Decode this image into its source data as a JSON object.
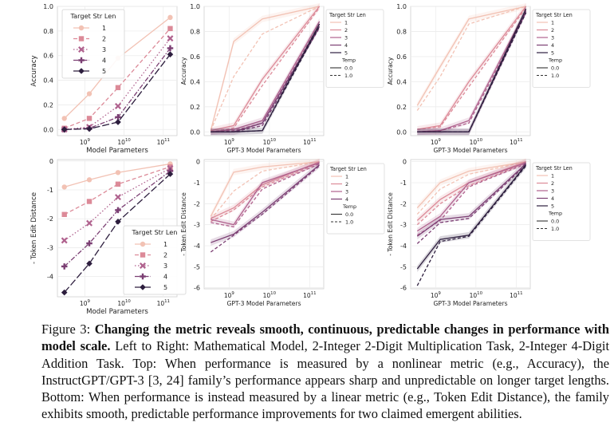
{
  "chart_data": [
    {
      "type": "line",
      "panel": "top-left",
      "xlabel": "Model Parameters",
      "ylabel": "Accuracy",
      "xscale": "log",
      "x": [
        300000000.0,
        1300000000.0,
        7000000000.0,
        150000000000.0
      ],
      "xticklabels": [
        "10^9",
        "10^10",
        "10^11"
      ],
      "ylim": [
        -0.05,
        1.0
      ],
      "yticks": [
        "0.0",
        "0.2",
        "0.4",
        "0.6",
        "0.8",
        "1.0"
      ],
      "grid": true,
      "legend": {
        "title": "Target Str Len",
        "placement": "top-left"
      },
      "series": [
        {
          "name": "1",
          "marker": "o",
          "dash": "solid",
          "values": [
            0.09,
            0.29,
            0.58,
            0.91
          ]
        },
        {
          "name": "2",
          "marker": "s",
          "dash": "dashed",
          "values": [
            0.01,
            0.09,
            0.34,
            0.82
          ]
        },
        {
          "name": "3",
          "marker": "x",
          "dash": "dotted",
          "values": [
            0.0,
            0.02,
            0.19,
            0.74
          ]
        },
        {
          "name": "4",
          "marker": "+",
          "dash": "dashdot",
          "values": [
            0.0,
            0.01,
            0.1,
            0.66
          ]
        },
        {
          "name": "5",
          "marker": "D",
          "dash": "longdash",
          "values": [
            0.0,
            0.005,
            0.06,
            0.61
          ]
        }
      ]
    },
    {
      "type": "line",
      "panel": "top-middle",
      "xlabel": "GPT-3 Model Parameters",
      "ylabel": "Accuracy",
      "xscale": "log",
      "x": [
        350000000.0,
        1300000000.0,
        6700000000.0,
        175000000000.0
      ],
      "xticklabels": [
        "10^9",
        "10^10",
        "10^11"
      ],
      "ylim": [
        -0.03,
        1.0
      ],
      "yticks": [
        "0.0",
        "0.2",
        "0.4",
        "0.6",
        "0.8",
        "1.0"
      ],
      "grid": true,
      "legend": {
        "title": "Target Str Len",
        "entries": [
          "1",
          "2",
          "3",
          "4",
          "5"
        ],
        "subtitle": "Temp",
        "temp_entries": [
          "0.0",
          "1.0"
        ],
        "placement": "outside-right"
      },
      "series": [
        {
          "name": "1",
          "temp": "0.0",
          "values": [
            0.01,
            0.72,
            0.9,
            1.0
          ]
        },
        {
          "name": "1",
          "temp": "1.0",
          "values": [
            0.01,
            0.44,
            0.78,
            1.0
          ]
        },
        {
          "name": "2",
          "temp": "0.0",
          "values": [
            0.01,
            0.05,
            0.42,
            1.0
          ]
        },
        {
          "name": "2",
          "temp": "1.0",
          "values": [
            0.0,
            0.03,
            0.37,
            0.99
          ]
        },
        {
          "name": "3",
          "temp": "0.0",
          "values": [
            0.0,
            0.02,
            0.09,
            0.88
          ]
        },
        {
          "name": "3",
          "temp": "1.0",
          "values": [
            0.0,
            0.01,
            0.07,
            0.86
          ]
        },
        {
          "name": "4",
          "temp": "0.0",
          "values": [
            0.0,
            0.0,
            0.07,
            0.84
          ]
        },
        {
          "name": "4",
          "temp": "1.0",
          "values": [
            0.0,
            0.0,
            0.05,
            0.83
          ]
        },
        {
          "name": "5",
          "temp": "0.0",
          "values": [
            0.0,
            0.0,
            0.01,
            0.86
          ]
        },
        {
          "name": "5",
          "temp": "1.0",
          "values": [
            0.0,
            0.0,
            0.01,
            0.84
          ]
        }
      ]
    },
    {
      "type": "line",
      "panel": "top-right",
      "xlabel": "GPT-3 Model Parameters",
      "ylabel": "Accuracy",
      "xscale": "log",
      "x": [
        350000000.0,
        1300000000.0,
        6700000000.0,
        175000000000.0
      ],
      "xticklabels": [
        "10^9",
        "10^10",
        "10^11"
      ],
      "ylim": [
        -0.03,
        1.0
      ],
      "yticks": [
        "0.0",
        "0.2",
        "0.4",
        "0.6",
        "0.8",
        "1.0"
      ],
      "grid": true,
      "legend": {
        "title": "Target Str Len",
        "entries": [
          "1",
          "2",
          "3",
          "4",
          "5"
        ],
        "subtitle": "Temp",
        "temp_entries": [
          "0.0",
          "1.0"
        ],
        "placement": "outside-right"
      },
      "series": [
        {
          "name": "1",
          "temp": "0.0",
          "values": [
            0.21,
            0.52,
            0.9,
            1.0
          ]
        },
        {
          "name": "1",
          "temp": "1.0",
          "values": [
            0.17,
            0.44,
            0.86,
            1.0
          ]
        },
        {
          "name": "2",
          "temp": "0.0",
          "values": [
            0.02,
            0.05,
            0.4,
            1.0
          ]
        },
        {
          "name": "2",
          "temp": "1.0",
          "values": [
            0.02,
            0.04,
            0.36,
            0.99
          ]
        },
        {
          "name": "3",
          "temp": "0.0",
          "values": [
            0.0,
            0.01,
            0.09,
            0.97
          ]
        },
        {
          "name": "3",
          "temp": "1.0",
          "values": [
            0.0,
            0.01,
            0.07,
            0.95
          ]
        },
        {
          "name": "4",
          "temp": "0.0",
          "values": [
            0.0,
            0.0,
            0.0,
            0.96
          ]
        },
        {
          "name": "4",
          "temp": "1.0",
          "values": [
            0.0,
            0.0,
            0.0,
            0.95
          ]
        },
        {
          "name": "5",
          "temp": "0.0",
          "values": [
            0.0,
            0.0,
            0.0,
            0.98
          ]
        },
        {
          "name": "5",
          "temp": "1.0",
          "values": [
            0.0,
            0.0,
            0.0,
            0.95
          ]
        }
      ]
    },
    {
      "type": "line",
      "panel": "bottom-left",
      "xlabel": "Model Parameters",
      "ylabel": "- Token Edit Distance",
      "xscale": "log",
      "x": [
        300000000.0,
        1300000000.0,
        7000000000.0,
        150000000000.0
      ],
      "xticklabels": [
        "10^9",
        "10^10",
        "10^11"
      ],
      "ylim": [
        -4.7,
        0.05
      ],
      "yticks": [
        "-4",
        "-3",
        "-2",
        "-1",
        "0"
      ],
      "grid": true,
      "legend": {
        "title": "Target Str Len",
        "placement": "bottom-right"
      },
      "series": [
        {
          "name": "1",
          "marker": "o",
          "dash": "solid",
          "values": [
            -0.9,
            -0.65,
            -0.4,
            -0.1
          ]
        },
        {
          "name": "2",
          "marker": "s",
          "dash": "dashed",
          "values": [
            -1.85,
            -1.4,
            -0.8,
            -0.2
          ]
        },
        {
          "name": "3",
          "marker": "x",
          "dash": "dotted",
          "values": [
            -2.75,
            -2.15,
            -1.25,
            -0.25
          ]
        },
        {
          "name": "4",
          "marker": "+",
          "dash": "dashdot",
          "values": [
            -3.65,
            -2.85,
            -1.7,
            -0.35
          ]
        },
        {
          "name": "5",
          "marker": "D",
          "dash": "longdash",
          "values": [
            -4.55,
            -3.55,
            -2.1,
            -0.45
          ]
        }
      ]
    },
    {
      "type": "line",
      "panel": "bottom-middle",
      "xlabel": "GPT-3 Model Parameters",
      "ylabel": "- Token Edit Distance",
      "xscale": "log",
      "x": [
        350000000.0,
        1300000000.0,
        6700000000.0,
        175000000000.0
      ],
      "xticklabels": [
        "10^9",
        "10^10",
        "10^11"
      ],
      "ylim": [
        -6.05,
        0.1
      ],
      "yticks": [
        "-6",
        "-5",
        "-4",
        "-3",
        "-2",
        "-1",
        "0"
      ],
      "grid": true,
      "legend": {
        "title": "Target Str Len",
        "entries": [
          "1",
          "2",
          "3",
          "4"
        ],
        "subtitle": "Temp",
        "temp_entries": [
          "0.0",
          "1.0"
        ],
        "placement": "top-right"
      },
      "series": [
        {
          "name": "1",
          "temp": "0.0",
          "values": [
            -2.6,
            -0.5,
            -0.25,
            0.0
          ]
        },
        {
          "name": "1",
          "temp": "1.0",
          "values": [
            -2.75,
            -1.4,
            -0.45,
            0.0
          ]
        },
        {
          "name": "2",
          "temp": "0.0",
          "values": [
            -2.7,
            -2.2,
            -1.1,
            0.0
          ]
        },
        {
          "name": "2",
          "temp": "1.0",
          "values": [
            -2.85,
            -2.3,
            -1.2,
            -0.05
          ]
        },
        {
          "name": "3",
          "temp": "0.0",
          "values": [
            -2.75,
            -3.0,
            -1.0,
            -0.05
          ]
        },
        {
          "name": "3",
          "temp": "1.0",
          "values": [
            -2.9,
            -3.1,
            -1.3,
            -0.1
          ]
        },
        {
          "name": "4",
          "temp": "0.0",
          "values": [
            -3.85,
            -3.45,
            -2.4,
            -0.15
          ]
        },
        {
          "name": "4",
          "temp": "1.0",
          "values": [
            -4.3,
            -3.5,
            -2.5,
            -0.2
          ]
        }
      ]
    },
    {
      "type": "line",
      "panel": "bottom-right",
      "xlabel": "GPT-3 Model Parameters",
      "ylabel": "- Token Edit Distance",
      "xscale": "log",
      "x": [
        350000000.0,
        1300000000.0,
        6700000000.0,
        175000000000.0
      ],
      "xticklabels": [
        "10^9",
        "10^10",
        "10^11"
      ],
      "ylim": [
        -6.05,
        0.1
      ],
      "yticks": [
        "-6",
        "-5",
        "-4",
        "-3",
        "-2",
        "-1",
        "0"
      ],
      "grid": true,
      "legend": {
        "title": "Target Str Len",
        "entries": [
          "1",
          "2",
          "3",
          "4",
          "5"
        ],
        "subtitle": "Temp",
        "temp_entries": [
          "0.0",
          "1.0"
        ],
        "placement": "outside-right"
      },
      "series": [
        {
          "name": "1",
          "temp": "0.0",
          "values": [
            -2.2,
            -1.0,
            -0.45,
            0.0
          ]
        },
        {
          "name": "1",
          "temp": "1.0",
          "values": [
            -2.5,
            -1.3,
            -0.6,
            0.0
          ]
        },
        {
          "name": "2",
          "temp": "0.0",
          "values": [
            -2.8,
            -1.8,
            -1.0,
            0.0
          ]
        },
        {
          "name": "2",
          "temp": "1.0",
          "values": [
            -3.0,
            -2.0,
            -1.15,
            -0.05
          ]
        },
        {
          "name": "3",
          "temp": "0.0",
          "values": [
            -3.3,
            -2.6,
            -1.0,
            -0.05
          ]
        },
        {
          "name": "3",
          "temp": "1.0",
          "values": [
            -3.5,
            -2.8,
            -1.2,
            -0.1
          ]
        },
        {
          "name": "4",
          "temp": "0.0",
          "values": [
            -3.55,
            -2.75,
            -2.6,
            -0.1
          ]
        },
        {
          "name": "4",
          "temp": "1.0",
          "values": [
            -3.9,
            -2.9,
            -2.7,
            -0.15
          ]
        },
        {
          "name": "5",
          "temp": "0.0",
          "values": [
            -5.1,
            -3.7,
            -3.5,
            -0.15
          ]
        },
        {
          "name": "5",
          "temp": "1.0",
          "values": [
            -5.9,
            -3.8,
            -3.55,
            -0.2
          ]
        }
      ]
    }
  ],
  "colors": {
    "1": "#f2c2b4",
    "2": "#dc8a98",
    "3": "#b0628e",
    "4": "#7b3f73",
    "5": "#2d1e3e"
  },
  "caption": {
    "label": "Figure 3:",
    "bold": "Changing the metric reveals smooth, continuous, predictable changes in performance with model scale.",
    "text": "Left to Right: Mathematical Model, 2-Integer 2-Digit Multiplication Task, 2-Integer 4-Digit Addition Task. Top: When performance is measured by a nonlinear metric (e.g., Accuracy), the InstructGPT/GPT-3 [3, 24] family’s performance appears sharp and unpredictable on longer target lengths. Bottom: When performance is instead measured by a linear metric (e.g., Token Edit Distance), the family exhibits smooth, predictable performance improvements for two claimed emergent abilities."
  }
}
